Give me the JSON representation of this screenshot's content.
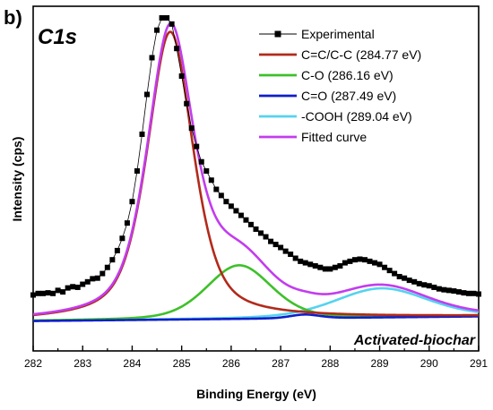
{
  "panel_label": "b)",
  "peak_label": "C1s",
  "sample_label": "Activated-biochar",
  "chart_data": {
    "type": "line",
    "title": "",
    "xlabel": "Binding Energy (eV)",
    "ylabel": "Intensity (cps)",
    "xlim": [
      282,
      291
    ],
    "ylim": [
      0,
      1
    ],
    "x_reversed": false,
    "x_ticks": [
      282,
      283,
      284,
      285,
      286,
      287,
      288,
      289,
      290,
      291
    ],
    "x_tick_labels": [
      "282",
      "283",
      "284",
      "285",
      "286",
      "287",
      "288",
      "289",
      "290",
      "291"
    ],
    "y_tick_labels_shown": false,
    "grid": false,
    "legend_position": "top-right",
    "series": [
      {
        "name": "Experimental",
        "kind": "markers",
        "color": "#000000",
        "x": [
          282.0,
          282.1,
          282.2,
          282.3,
          282.4,
          282.5,
          282.6,
          282.7,
          282.8,
          282.9,
          283.0,
          283.1,
          283.2,
          283.3,
          283.4,
          283.5,
          283.6,
          283.7,
          283.8,
          283.9,
          284.0,
          284.1,
          284.2,
          284.3,
          284.4,
          284.5,
          284.6,
          284.7,
          284.8,
          284.9,
          285.0,
          285.1,
          285.2,
          285.3,
          285.4,
          285.5,
          285.6,
          285.7,
          285.8,
          285.9,
          286.0,
          286.1,
          286.2,
          286.3,
          286.4,
          286.5,
          286.6,
          286.7,
          286.8,
          286.9,
          287.0,
          287.1,
          287.2,
          287.3,
          287.4,
          287.5,
          287.6,
          287.7,
          287.8,
          287.9,
          288.0,
          288.1,
          288.2,
          288.3,
          288.4,
          288.5,
          288.6,
          288.7,
          288.8,
          288.9,
          289.0,
          289.1,
          289.2,
          289.3,
          289.4,
          289.5,
          289.6,
          289.7,
          289.8,
          289.9,
          290.0,
          290.1,
          290.2,
          290.3,
          290.4,
          290.5,
          290.6,
          290.7,
          290.8,
          290.9,
          291.0
        ],
        "y": [
          0.095,
          0.1,
          0.1,
          0.102,
          0.1,
          0.11,
          0.105,
          0.118,
          0.122,
          0.12,
          0.13,
          0.138,
          0.148,
          0.15,
          0.165,
          0.185,
          0.21,
          0.24,
          0.28,
          0.33,
          0.4,
          0.5,
          0.62,
          0.75,
          0.87,
          0.96,
          1.0,
          1.0,
          0.98,
          0.9,
          0.81,
          0.72,
          0.64,
          0.58,
          0.53,
          0.5,
          0.47,
          0.44,
          0.42,
          0.4,
          0.385,
          0.37,
          0.355,
          0.34,
          0.325,
          0.31,
          0.297,
          0.285,
          0.27,
          0.26,
          0.25,
          0.238,
          0.228,
          0.215,
          0.205,
          0.2,
          0.195,
          0.19,
          0.185,
          0.18,
          0.18,
          0.185,
          0.19,
          0.2,
          0.205,
          0.21,
          0.212,
          0.21,
          0.205,
          0.2,
          0.195,
          0.185,
          0.175,
          0.165,
          0.155,
          0.15,
          0.143,
          0.138,
          0.132,
          0.128,
          0.125,
          0.12,
          0.115,
          0.112,
          0.11,
          0.108,
          0.105,
          0.102,
          0.1,
          0.1,
          0.098
        ]
      },
      {
        "name": "C=C/C-C (284.77 eV)",
        "kind": "line",
        "color": "#b22a1b",
        "center": 284.77,
        "amp": 0.94,
        "fwhm": 1.1,
        "eta": 0.55
      },
      {
        "name": "C-O (286.16 eV)",
        "kind": "line",
        "color": "#3ec02a",
        "center": 286.16,
        "amp": 0.175,
        "fwhm": 1.55,
        "eta": 0.3
      },
      {
        "name": "C=O (287.49 eV)",
        "kind": "line",
        "color": "#0f1fc8",
        "center": 287.49,
        "amp": 0.012,
        "fwhm": 0.7,
        "eta": 0.2
      },
      {
        "name": "-COOH (289.04 eV)",
        "kind": "line",
        "color": "#55d3ef",
        "center": 289.04,
        "amp": 0.095,
        "fwhm": 2.2,
        "eta": 0.3
      },
      {
        "name": "Fitted curve",
        "kind": "line",
        "color": "#c23dee",
        "sum_of": [
          1,
          2,
          3,
          4
        ]
      }
    ],
    "baseline": {
      "start": 0.01,
      "end": 0.025
    }
  }
}
